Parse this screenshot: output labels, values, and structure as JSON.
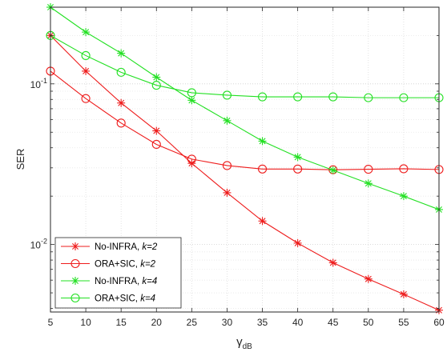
{
  "chart_data": {
    "type": "line",
    "xlabel": "γ",
    "xlabel_sub": "dB",
    "ylabel": "SER",
    "xlim": [
      5,
      60
    ],
    "ylim": [
      0.0038,
      0.3
    ],
    "yscale": "log",
    "grid": true,
    "legend_position": "bottom-left",
    "x_ticks": [
      5,
      10,
      15,
      20,
      25,
      30,
      35,
      40,
      45,
      50,
      55,
      60
    ],
    "x_tick_labels": [
      "5",
      "10",
      "15",
      "20",
      "25",
      "30",
      "35",
      "40",
      "45",
      "50",
      "55",
      "60"
    ],
    "y_major_ticks": [
      {
        "value": 0.01,
        "base": "10",
        "exp": "-2"
      },
      {
        "value": 0.1,
        "base": "10",
        "exp": "-1"
      }
    ],
    "x": [
      5,
      10,
      15,
      20,
      25,
      30,
      35,
      40,
      45,
      50,
      55,
      60
    ],
    "series": [
      {
        "name": "No-INFRA, ",
        "name_k": "k=2",
        "color": "#ee1c1c",
        "marker": "star",
        "values": [
          0.2,
          0.12,
          0.076,
          0.051,
          0.032,
          0.021,
          0.014,
          0.0102,
          0.0077,
          0.0061,
          0.0049,
          0.0039
        ]
      },
      {
        "name": "ORA+SIC, ",
        "name_k": "k=2",
        "color": "#ee1c1c",
        "marker": "circle",
        "values": [
          0.12,
          0.081,
          0.057,
          0.042,
          0.034,
          0.031,
          0.0295,
          0.0295,
          0.0292,
          0.0294,
          0.0296,
          0.0293
        ]
      },
      {
        "name": "No-INFRA, ",
        "name_k": "k=4",
        "color": "#22e022",
        "marker": "star",
        "values": [
          0.3,
          0.21,
          0.155,
          0.11,
          0.079,
          0.059,
          0.044,
          0.035,
          0.029,
          0.024,
          0.02,
          0.0165
        ]
      },
      {
        "name": "ORA+SIC, ",
        "name_k": "k=4",
        "color": "#22e022",
        "marker": "circle",
        "values": [
          0.2,
          0.15,
          0.118,
          0.098,
          0.088,
          0.085,
          0.083,
          0.083,
          0.083,
          0.082,
          0.082,
          0.082
        ]
      }
    ]
  }
}
